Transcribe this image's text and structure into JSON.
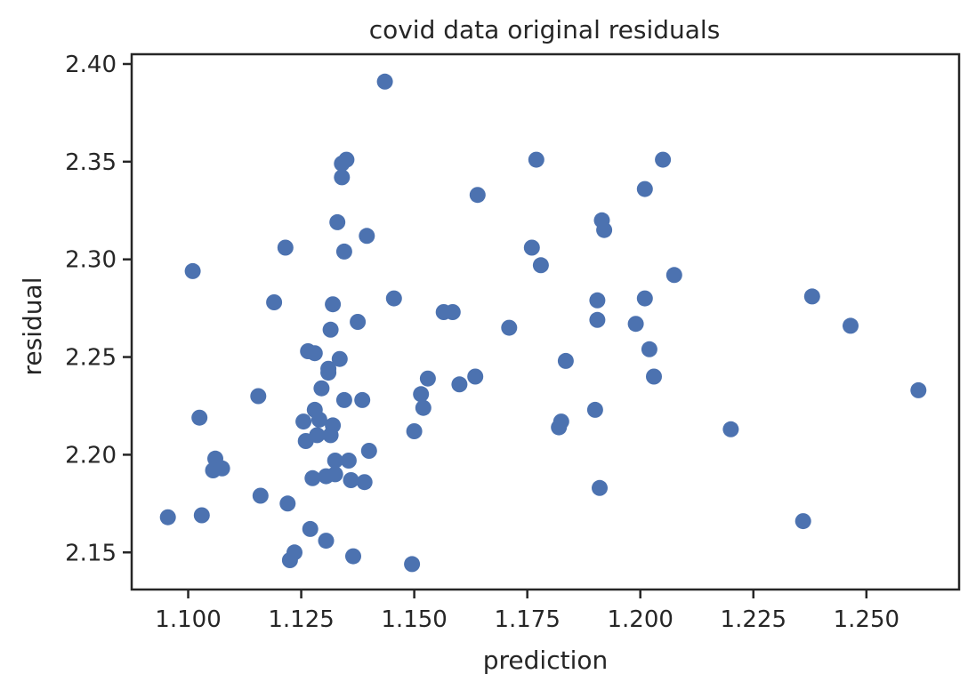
{
  "chart_data": {
    "type": "scatter",
    "title": "covid data original residuals",
    "xlabel": "prediction",
    "ylabel": "residual",
    "xlim": [
      1.0875,
      1.2705
    ],
    "ylim": [
      2.131,
      2.405
    ],
    "grid": false,
    "x_ticks": [
      1.1,
      1.125,
      1.15,
      1.175,
      1.2,
      1.225,
      1.25
    ],
    "x_tick_labels": [
      "1.100",
      "1.125",
      "1.150",
      "1.175",
      "1.200",
      "1.225",
      "1.250"
    ],
    "y_ticks": [
      2.15,
      2.2,
      2.25,
      2.3,
      2.35,
      2.4
    ],
    "y_tick_labels": [
      "2.15",
      "2.20",
      "2.25",
      "2.30",
      "2.35",
      "2.40"
    ],
    "marker_color": "#4c72b0",
    "series": [
      {
        "x": [
          1.0955,
          1.101,
          1.1025,
          1.103,
          1.1055,
          1.106,
          1.1075,
          1.1155,
          1.116,
          1.119,
          1.1215,
          1.122,
          1.1225,
          1.1235,
          1.1255,
          1.126,
          1.1265,
          1.127,
          1.1275,
          1.128,
          1.128,
          1.1285,
          1.129,
          1.1295,
          1.1305,
          1.1305,
          1.131,
          1.131,
          1.1315,
          1.1315,
          1.132,
          1.132,
          1.1325,
          1.1325,
          1.133,
          1.1335,
          1.134,
          1.134,
          1.1345,
          1.1345,
          1.135,
          1.1355,
          1.136,
          1.1365,
          1.1375,
          1.1385,
          1.139,
          1.1395,
          1.14,
          1.1435,
          1.1455,
          1.1495,
          1.15,
          1.1515,
          1.152,
          1.153,
          1.1565,
          1.1585,
          1.16,
          1.1635,
          1.164,
          1.171,
          1.176,
          1.177,
          1.178,
          1.182,
          1.1825,
          1.1835,
          1.19,
          1.1905,
          1.1905,
          1.191,
          1.1915,
          1.192,
          1.199,
          1.201,
          1.201,
          1.202,
          1.203,
          1.205,
          1.2075,
          1.22,
          1.236,
          1.238,
          1.2465,
          1.2615
        ],
        "y": [
          2.168,
          2.294,
          2.219,
          2.169,
          2.192,
          2.198,
          2.193,
          2.23,
          2.179,
          2.278,
          2.306,
          2.175,
          2.146,
          2.15,
          2.217,
          2.207,
          2.253,
          2.162,
          2.188,
          2.252,
          2.223,
          2.21,
          2.218,
          2.234,
          2.189,
          2.156,
          2.244,
          2.242,
          2.21,
          2.264,
          2.277,
          2.215,
          2.197,
          2.19,
          2.319,
          2.249,
          2.349,
          2.342,
          2.228,
          2.304,
          2.351,
          2.197,
          2.187,
          2.148,
          2.268,
          2.228,
          2.186,
          2.312,
          2.202,
          2.391,
          2.28,
          2.144,
          2.212,
          2.231,
          2.224,
          2.239,
          2.273,
          2.273,
          2.236,
          2.24,
          2.333,
          2.265,
          2.306,
          2.351,
          2.297,
          2.214,
          2.217,
          2.248,
          2.223,
          2.279,
          2.269,
          2.183,
          2.32,
          2.315,
          2.267,
          2.336,
          2.28,
          2.254,
          2.24,
          2.351,
          2.292,
          2.213,
          2.166,
          2.281,
          2.266,
          2.233
        ]
      }
    ]
  }
}
